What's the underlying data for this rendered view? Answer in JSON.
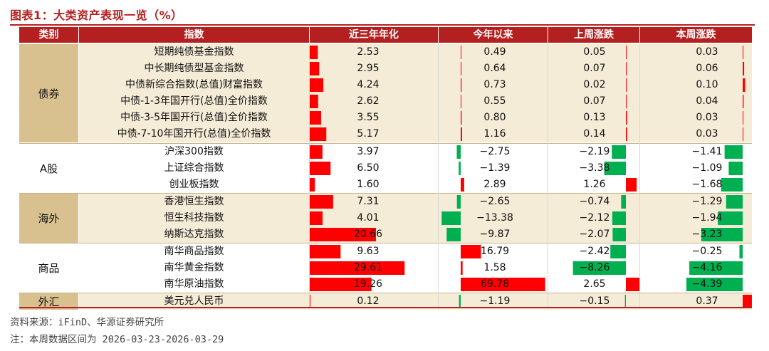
{
  "title": "图表1：大类资产表现一览（%）",
  "headers": [
    "类别",
    "指数",
    "近三年年化",
    "今年以来",
    "上周涨跌",
    "本周涨跌"
  ],
  "groups": [
    {
      "name": "债券",
      "rows": [
        0,
        1,
        2,
        3,
        4,
        5
      ]
    },
    {
      "name": "A股",
      "rows": [
        6,
        7,
        8
      ]
    },
    {
      "name": "海外",
      "rows": [
        9,
        10,
        11
      ]
    },
    {
      "name": "商品",
      "rows": [
        12,
        13,
        14
      ]
    },
    {
      "name": "外汇",
      "rows": [
        15
      ]
    }
  ],
  "source": "资料来源：iFinD、华源证券研究所",
  "note": "注：本周数据区间为 2026-03-23-2026-03-29",
  "colors": {
    "accent": "#b41f1f",
    "positive": "#ff0000",
    "negative": "#00b050",
    "group_bg": "#d9c08f",
    "row_bg": "#f5ecd7"
  },
  "chart_data": {
    "type": "table",
    "columns": [
      "近三年年化",
      "今年以来",
      "上周涨跌",
      "本周涨跌"
    ],
    "categories": [
      "短期纯债基金指数",
      "中长期纯债型基金指数",
      "中债新综合指数(总值)财富指数",
      "中债-1-3年国开行(总值)全价指数",
      "中债-3-5年国开行(总值)全价指数",
      "中债-7-10年国开行(总值)全价指数",
      "沪深300指数",
      "上证综合指数",
      "创业板指数",
      "香港恒生指数",
      "恒生科技指数",
      "纳斯达克指数",
      "南华商品指数",
      "南华黄金指数",
      "南华原油指数",
      "美元兑人民币"
    ],
    "series": [
      {
        "name": "近三年年化",
        "values": [
          2.53,
          2.95,
          4.24,
          2.62,
          3.55,
          5.17,
          3.97,
          6.5,
          1.6,
          7.31,
          4.01,
          20.66,
          9.63,
          29.61,
          19.26,
          0.12
        ],
        "labels": [
          "2.53",
          "2.95",
          "4.24",
          "2.62",
          "3.55",
          "5.17",
          "3.97",
          "6.50",
          "1.60",
          "7.31",
          "4.01",
          "20.66",
          "9.63",
          "29.61",
          "19.26",
          "0.12"
        ]
      },
      {
        "name": "今年以来",
        "values": [
          0.49,
          0.64,
          0.73,
          0.55,
          0.8,
          1.16,
          -2.75,
          -1.39,
          2.89,
          -2.65,
          -13.38,
          -9.87,
          16.79,
          1.58,
          69.78,
          -1.19
        ],
        "labels": [
          "0.49",
          "0.64",
          "0.73",
          "0.55",
          "0.80",
          "1.16",
          "−2.75",
          "−1.39",
          "2.89",
          "−2.65",
          "−13.38",
          "−9.87",
          "16.79",
          "1.58",
          "69.78",
          "−1.19"
        ]
      },
      {
        "name": "上周涨跌",
        "values": [
          0.05,
          0.07,
          0.02,
          0.07,
          0.13,
          0.14,
          -2.19,
          -3.38,
          1.26,
          -0.74,
          -2.12,
          -2.07,
          -2.42,
          -8.26,
          2.65,
          -0.15
        ],
        "labels": [
          "0.05",
          "0.07",
          "0.02",
          "0.07",
          "0.13",
          "0.14",
          "−2.19",
          "−3.38",
          "1.26",
          "−0.74",
          "−2.12",
          "−2.07",
          "−2.42",
          "−8.26",
          "2.65",
          "−0.15"
        ]
      },
      {
        "name": "本周涨跌",
        "values": [
          0.03,
          0.06,
          0.1,
          0.04,
          0.03,
          0.03,
          -1.41,
          -1.09,
          -1.68,
          -1.29,
          -1.94,
          -3.23,
          -0.25,
          -4.16,
          -4.39,
          0.37
        ],
        "labels": [
          "0.03",
          "0.06",
          "0.10",
          "0.04",
          "0.03",
          "0.03",
          "−1.41",
          "−1.09",
          "−1.68",
          "−1.29",
          "−1.94",
          "−3.23",
          "−0.25",
          "−4.16",
          "−4.39",
          "0.37"
        ]
      }
    ]
  }
}
